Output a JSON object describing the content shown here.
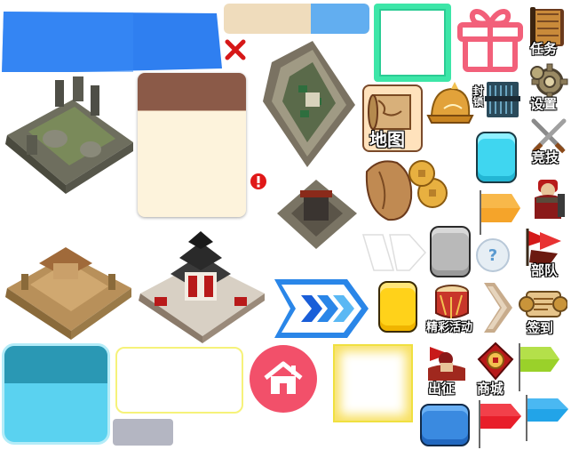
{
  "sprite_sheet": {
    "buttons": {
      "task": "任务",
      "settings": "设置",
      "tactics": "竞技",
      "troops": "部队",
      "checkin": "签到",
      "map": "地图",
      "events": "精彩活动",
      "expedition": "出征",
      "mall": "商城",
      "lock": "封锁",
      "help": "?"
    },
    "colors": {
      "blue_banner": "#2f7ff0",
      "teal_frame": "#3de6a8",
      "gift_pink": "#f2607a",
      "home_red": "#f2506a",
      "arrow_blue": "#2a86e8",
      "flag_orange": "#f5a42a",
      "flag_green": "#9ad12a",
      "flag_red": "#e81e2a",
      "flag_cyan": "#22a4e8",
      "yellow_btn": "#ffd21a",
      "cyan_btn": "#3fd6f0",
      "grey_btn": "#b9b9b9",
      "panel_brown": "#8b5a48",
      "panel_cream": "#fdf3dc"
    }
  }
}
